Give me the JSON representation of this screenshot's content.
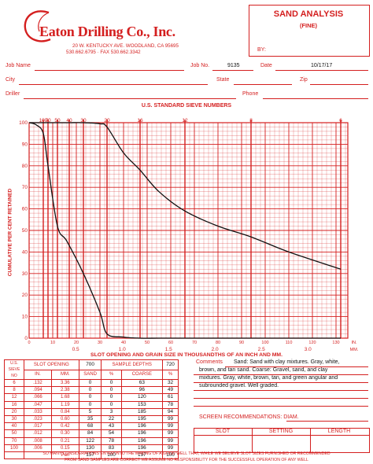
{
  "company": {
    "name": "Eaton Drilling Co., Inc.",
    "address": "20 W. KENTUCKY AVE. WOODLAND, CA 95695",
    "phone_fax": "530.662.6795 · FAX 530.662.3342"
  },
  "form": {
    "title": "SAND ANALYSIS",
    "subtitle": "(FINE)",
    "by_label": "BY:"
  },
  "fields": {
    "job_name_label": "Job Name",
    "job_no_label": "Job No.",
    "job_no_value": "9135",
    "date_label": "Date",
    "date_value": "10/17/17",
    "city_label": "City",
    "state_label": "State",
    "zip_label": "Zip",
    "driller_label": "Driller",
    "phone_label": "Phone"
  },
  "chart_data": {
    "type": "line",
    "title": "U.S. STANDARD SIEVE NUMBERS",
    "xlabel": "SLOT OPENING AND GRAIN SIZE IN THOUSANDTHS OF AN INCH AND MM.",
    "ylabel": "CUMULATIVE PER CENT RETAINED",
    "xlim": [
      0,
      135
    ],
    "ylim": [
      0,
      100
    ],
    "x_unit_label": "IN.",
    "mm_unit_label": "MM.",
    "sieve_ticks": [
      {
        "label": "100",
        "x": 6
      },
      {
        "label": "70",
        "x": 8
      },
      {
        "label": "50",
        "x": 12
      },
      {
        "label": "40",
        "x": 17
      },
      {
        "label": "30",
        "x": 23
      },
      {
        "label": "20",
        "x": 33
      },
      {
        "label": "16",
        "x": 47
      },
      {
        "label": "12",
        "x": 66
      },
      {
        "label": "8",
        "x": 94
      },
      {
        "label": "6",
        "x": 132
      }
    ],
    "x_ticks": [
      "0",
      "10",
      "20",
      "30",
      "40",
      "50",
      "60",
      "70",
      "80",
      "90",
      "100",
      "110",
      "120",
      "130"
    ],
    "y_ticks": [
      "0",
      "10",
      "20",
      "30",
      "40",
      "50",
      "60",
      "70",
      "80",
      "90",
      "100"
    ],
    "mm_ticks": [
      {
        "label": "0.5",
        "x": 19.7
      },
      {
        "label": "1.0",
        "x": 39.4
      },
      {
        "label": "1.5",
        "x": 59.1
      },
      {
        "label": "2.0",
        "x": 78.7
      },
      {
        "label": "2.5",
        "x": 98.4
      },
      {
        "label": "3.0",
        "x": 118.1
      }
    ],
    "series": [
      {
        "x": [
          0,
          3,
          6,
          8,
          12,
          16,
          23,
          30,
          33,
          40,
          47,
          55,
          66,
          80,
          94,
          110,
          120,
          132
        ],
        "y": [
          100,
          99,
          95,
          80,
          52,
          45,
          30,
          12,
          2,
          0.5,
          0,
          0,
          0,
          0,
          0,
          0,
          0,
          0
        ]
      },
      {
        "x": [
          0,
          6,
          8,
          12,
          17,
          23,
          30,
          33,
          40,
          47,
          55,
          66,
          80,
          94,
          110,
          132
        ],
        "y": [
          100,
          100,
          100,
          100,
          100,
          100,
          99.5,
          98,
          86,
          78,
          68,
          59,
          52,
          47,
          40,
          32
        ]
      }
    ]
  },
  "table": {
    "headers": {
      "us_sieve_no": "U.S. SIEVE NO",
      "slot_opening": "SLOT OPENING",
      "slot_value": "700",
      "sample_depths": "SAMPLE DEPTHS",
      "depth_value": "720",
      "in": "IN.",
      "mm": "MM.",
      "sand": "SAND",
      "pct": "%",
      "coarse": "COARSE",
      "pct2": "%"
    },
    "rows": [
      [
        "6",
        ".132",
        "3.36",
        "0",
        "0",
        "63",
        "32"
      ],
      [
        "8",
        ".094",
        "2.38",
        "0",
        "0",
        "96",
        "49"
      ],
      [
        "12",
        ".066",
        "1.68",
        "0",
        "0",
        "120",
        "61"
      ],
      [
        "16",
        ".047",
        "1.19",
        "0",
        "0",
        "153",
        "78"
      ],
      [
        "20",
        ".033",
        "0.84",
        "5",
        "3",
        "185",
        "94"
      ],
      [
        "30",
        ".023",
        "0.60",
        "35",
        "22",
        "195",
        "99"
      ],
      [
        "40",
        ".017",
        "0.42",
        "68",
        "43",
        "196",
        "99"
      ],
      [
        "50",
        ".012",
        "0.30",
        "84",
        "54",
        "196",
        "99"
      ],
      [
        "70",
        ".008",
        "0.21",
        "122",
        "78",
        "196",
        "99"
      ],
      [
        "100",
        ".006",
        "0.15",
        "130",
        "83",
        "196",
        "99"
      ],
      [
        "",
        "",
        "Pan",
        "157",
        "100",
        "197",
        "100"
      ]
    ]
  },
  "comments": {
    "label": "Comments",
    "lines": [
      "Sand: Sand with clay mixtures. Gray, white,",
      "brown, and tan sand.  Coarse: Gravel, sand, and clay",
      "mixtures. Gray, white, brown, tan, and green angular and",
      "subrounded gravel. Well graded."
    ]
  },
  "screen": {
    "label": "SCREEN RECOMMENDATIONS: DIAM.",
    "slot": "SLOT",
    "setting": "SETTING",
    "length": "LENGTH"
  },
  "disclaimer": [
    "SO MANY CONSIDERATIONS ENTER INTO THE MAKING OF A GOOD WELL THAT, WHILE WE BELIEVE SLOT SIZES FURNISHED OR RECOMMENDED",
    "FROM SAND SAMPLES ARE CORRECT WE ASSUME NO RESPONSIBILITY FOR THE SUCCESSFUL OPERATION OF ANY WELL"
  ],
  "colors": {
    "accent": "#d41f1f",
    "ink": "#111111"
  }
}
